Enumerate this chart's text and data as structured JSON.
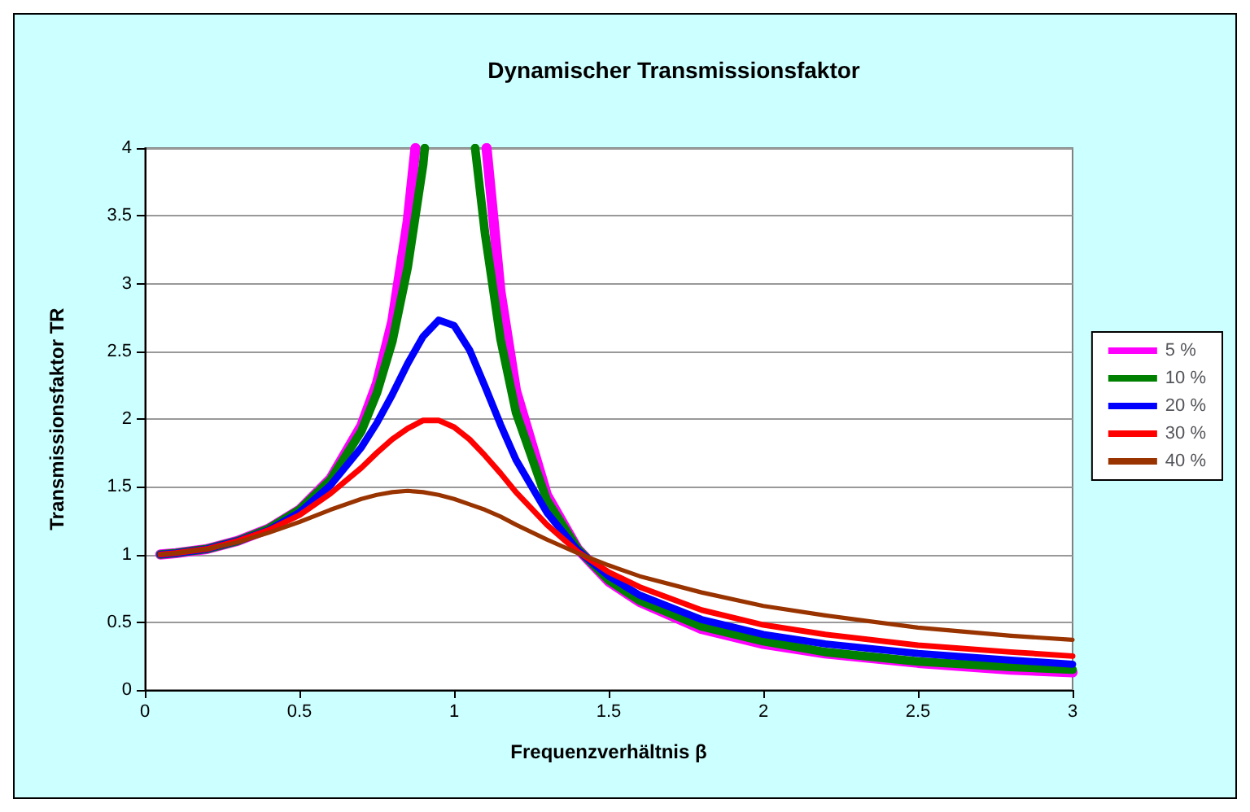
{
  "chart_data": {
    "type": "line",
    "title": "Dynamischer Transmissionsfaktor",
    "xlabel": "Frequenzverhältnis β",
    "ylabel": "Transmissionsfaktor TR",
    "x": [
      0.05,
      0.1,
      0.2,
      0.3,
      0.4,
      0.5,
      0.6,
      0.7,
      0.75,
      0.8,
      0.85,
      0.9,
      0.95,
      1.0,
      1.05,
      1.1,
      1.15,
      1.2,
      1.3,
      1.4,
      1.5,
      1.6,
      1.8,
      2.0,
      2.2,
      2.5,
      2.8,
      3.0
    ],
    "series": [
      {
        "name": "5 %",
        "color": "#ff00ff",
        "x": [
          0.05,
          0.1,
          0.2,
          0.3,
          0.4,
          0.5,
          0.6,
          0.7,
          0.75,
          0.8,
          0.85,
          0.875,
          1.0,
          1.105,
          1.15,
          1.2,
          1.3,
          1.4,
          1.5,
          1.6,
          1.8,
          2.0,
          2.2,
          2.5,
          2.8,
          3.0
        ],
        "values": [
          1.0,
          1.01,
          1.04,
          1.1,
          1.19,
          1.33,
          1.56,
          1.95,
          2.26,
          2.72,
          3.46,
          4,
          null,
          4,
          2.94,
          2.21,
          1.44,
          1.04,
          0.8,
          0.65,
          0.45,
          0.34,
          0.27,
          0.2,
          0.15,
          0.13
        ]
      },
      {
        "name": "10 %",
        "color": "#008000",
        "x": [
          0.05,
          0.1,
          0.2,
          0.3,
          0.4,
          0.5,
          0.6,
          0.7,
          0.75,
          0.8,
          0.85,
          0.9,
          0.905,
          1.0,
          1.068,
          1.1,
          1.15,
          1.2,
          1.3,
          1.4,
          1.5,
          1.6,
          1.8,
          2.0,
          2.2,
          2.5,
          2.8,
          3.0
        ],
        "values": [
          1.0,
          1.01,
          1.04,
          1.1,
          1.19,
          1.33,
          1.55,
          1.91,
          2.19,
          2.57,
          3.12,
          3.88,
          4,
          null,
          4,
          3.37,
          2.59,
          2.05,
          1.4,
          1.04,
          0.81,
          0.66,
          0.47,
          0.36,
          0.28,
          0.21,
          0.17,
          0.15
        ]
      },
      {
        "name": "20 %",
        "color": "#0000ff",
        "values": [
          1.0,
          1.01,
          1.04,
          1.1,
          1.18,
          1.31,
          1.51,
          1.79,
          1.97,
          2.18,
          2.41,
          2.61,
          2.73,
          2.69,
          2.51,
          2.24,
          1.96,
          1.7,
          1.31,
          1.03,
          0.84,
          0.7,
          0.52,
          0.41,
          0.34,
          0.27,
          0.22,
          0.19
        ]
      },
      {
        "name": "30 %",
        "color": "#ff0000",
        "values": [
          1.0,
          1.01,
          1.04,
          1.1,
          1.18,
          1.29,
          1.45,
          1.64,
          1.75,
          1.85,
          1.93,
          1.99,
          1.99,
          1.94,
          1.85,
          1.73,
          1.6,
          1.46,
          1.22,
          1.02,
          0.87,
          0.76,
          0.59,
          0.48,
          0.41,
          0.33,
          0.28,
          0.25
        ]
      },
      {
        "name": "40 %",
        "color": "#993300",
        "values": [
          1.0,
          1.01,
          1.04,
          1.09,
          1.16,
          1.24,
          1.33,
          1.41,
          1.44,
          1.46,
          1.47,
          1.46,
          1.44,
          1.41,
          1.37,
          1.33,
          1.28,
          1.22,
          1.11,
          1.01,
          0.92,
          0.84,
          0.72,
          0.62,
          0.55,
          0.46,
          0.4,
          0.37
        ]
      }
    ],
    "xlim": [
      0,
      3
    ],
    "xticks": [
      0,
      0.5,
      1,
      1.5,
      2,
      2.5,
      3
    ],
    "ylim": [
      0,
      4
    ],
    "yticks": [
      0,
      0.5,
      1,
      1.5,
      2,
      2.5,
      3,
      3.5,
      4
    ],
    "grid": "y",
    "legend": "right",
    "marker": "none",
    "line_style": "solid"
  }
}
